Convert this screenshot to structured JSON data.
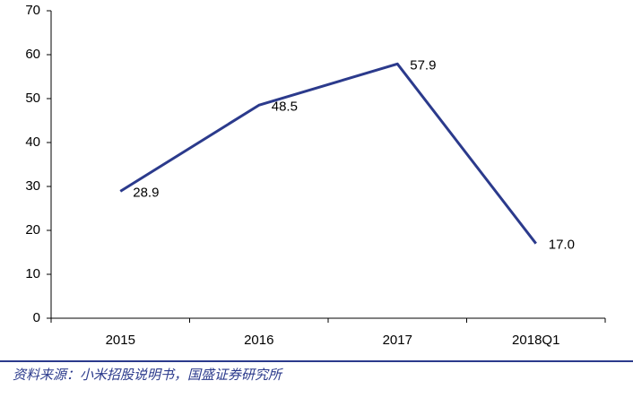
{
  "chart_data": {
    "type": "line",
    "categories": [
      "2015",
      "2016",
      "2017",
      "2018Q1"
    ],
    "series": [
      {
        "values": [
          28.9,
          48.5,
          57.9,
          17.0
        ],
        "value_labels": [
          "28.9",
          "48.5",
          "57.9",
          "17.0"
        ],
        "color": "#2b3a8c"
      }
    ],
    "ylim": [
      0,
      70
    ],
    "yticks": [
      0,
      10,
      20,
      30,
      40,
      50,
      60,
      70
    ],
    "source": "资料来源：小米招股说明书，国盛证券研究所"
  }
}
